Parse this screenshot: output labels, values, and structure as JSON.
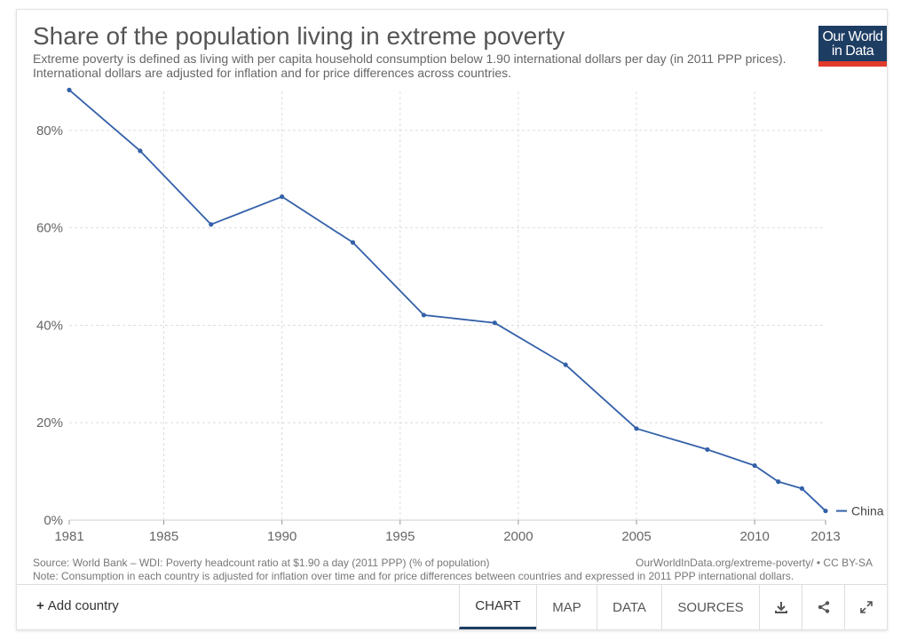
{
  "header": {
    "title": "Share of the population living in extreme poverty",
    "subtitle": "Extreme poverty is defined as living with per capita household consumption below 1.90 international dollars per day (in 2011 PPP prices). International dollars are adjusted for inflation and for price differences across countries.",
    "logo_line1": "Our World",
    "logo_line2": "in Data"
  },
  "footer": {
    "source": "Source: World Bank – WDI: Poverty headcount ratio at $1.90 a day (2011 PPP) (% of population)",
    "url": "OurWorldInData.org/extreme-poverty/ • CC BY-SA",
    "note": "Note: Consumption in each country is adjusted for inflation over time and for price differences between countries and expressed in 2011 PPP international dollars."
  },
  "controls": {
    "add_country": "Add country",
    "tabs": [
      "CHART",
      "MAP",
      "DATA",
      "SOURCES"
    ],
    "active_tab": "CHART"
  },
  "colors": {
    "series": "#3360a9",
    "grid": "#dddddd",
    "logo_bg": "#1d3d63",
    "logo_accent": "#e03b2d"
  },
  "chart_data": {
    "type": "line",
    "title": "Share of the population living in extreme poverty",
    "xlim": [
      1981,
      2013
    ],
    "ylim": [
      0,
      88
    ],
    "xticks": [
      1981,
      1985,
      1990,
      1995,
      2000,
      2005,
      2010,
      2013
    ],
    "yticks": [
      0,
      20,
      40,
      60,
      80
    ],
    "ytick_labels": [
      "0%",
      "20%",
      "40%",
      "60%",
      "80%"
    ],
    "grid": true,
    "series": [
      {
        "name": "China",
        "x": [
          1981,
          1984,
          1987,
          1990,
          1993,
          1996,
          1999,
          2002,
          2005,
          2008,
          2010,
          2011,
          2012,
          2013
        ],
        "y": [
          88.3,
          75.8,
          60.7,
          66.4,
          57.0,
          42.1,
          40.5,
          31.9,
          18.8,
          14.5,
          11.2,
          7.9,
          6.5,
          1.9
        ]
      }
    ]
  }
}
